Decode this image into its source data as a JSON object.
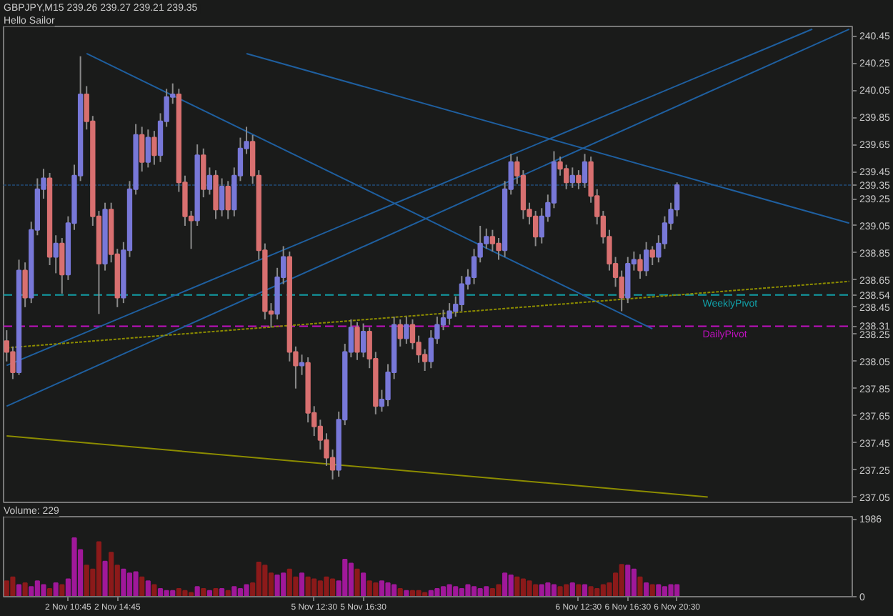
{
  "chart_data": [
    {
      "type": "candlestick",
      "title": "GBPJPY,M15  239.26 239.27 239.21 239.35",
      "subtitle": "Hello Sailor",
      "categories": [
        null,
        null,
        null,
        null,
        null,
        null,
        null,
        null,
        null,
        null,
        null,
        null,
        null,
        null,
        null,
        null,
        null,
        null,
        null,
        null,
        null,
        null,
        null,
        null,
        null,
        null,
        null,
        null,
        null,
        null,
        null,
        null,
        null,
        null,
        null,
        null,
        null,
        null,
        null,
        null,
        null,
        null,
        null,
        null,
        null,
        null,
        null,
        null,
        null,
        null,
        null,
        null,
        null,
        null,
        null,
        null,
        null,
        null,
        null,
        null,
        null,
        null,
        null,
        null,
        null,
        null,
        null,
        null,
        null,
        null,
        null,
        null,
        null,
        null,
        null,
        null,
        null,
        null,
        null,
        null,
        null,
        null,
        null,
        null,
        null,
        null,
        null,
        null,
        null,
        null,
        null,
        null,
        null,
        null,
        null,
        null,
        null,
        null,
        null,
        null,
        null,
        null,
        null,
        null,
        null,
        null,
        null,
        null,
        null,
        null,
        null,
        null,
        null,
        null,
        null,
        null,
        null,
        null,
        null,
        null,
        null,
        null,
        null,
        null,
        null,
        null,
        null,
        null,
        null,
        null,
        null,
        null,
        null,
        null,
        null,
        null,
        null,
        null
      ],
      "ohlc": [
        [
          238.2,
          238.28,
          238.05,
          238.12
        ],
        [
          238.12,
          238.16,
          237.92,
          237.97
        ],
        [
          237.97,
          238.8,
          237.95,
          238.72
        ],
        [
          238.72,
          238.78,
          238.45,
          238.52
        ],
        [
          238.52,
          239.08,
          238.48,
          239.02
        ],
        [
          239.02,
          239.4,
          238.98,
          239.32
        ],
        [
          239.32,
          239.47,
          239.25,
          239.4
        ],
        [
          239.4,
          239.44,
          238.76,
          238.82
        ],
        [
          238.82,
          238.98,
          238.7,
          238.92
        ],
        [
          238.92,
          238.96,
          238.55,
          238.69
        ],
        [
          238.69,
          239.12,
          238.65,
          239.07
        ],
        [
          239.07,
          239.5,
          239.02,
          239.42
        ],
        [
          239.42,
          240.3,
          239.38,
          240.02
        ],
        [
          240.02,
          240.08,
          239.76,
          239.82
        ],
        [
          239.82,
          239.86,
          239.05,
          239.12
        ],
        [
          239.12,
          239.16,
          238.4,
          238.77
        ],
        [
          238.77,
          239.22,
          238.72,
          239.17
        ],
        [
          239.17,
          239.22,
          238.78,
          238.84
        ],
        [
          238.84,
          238.88,
          238.45,
          238.52
        ],
        [
          238.52,
          238.93,
          238.48,
          238.87
        ],
        [
          238.87,
          239.38,
          238.82,
          239.32
        ],
        [
          239.32,
          239.8,
          239.28,
          239.72
        ],
        [
          239.72,
          239.78,
          239.45,
          239.52
        ],
        [
          239.52,
          239.76,
          239.48,
          239.7
        ],
        [
          239.7,
          239.75,
          239.5,
          239.57
        ],
        [
          239.57,
          239.88,
          239.52,
          239.82
        ],
        [
          239.82,
          240.06,
          239.78,
          240.0
        ],
        [
          240.0,
          240.1,
          239.95,
          240.02
        ],
        [
          240.02,
          240.06,
          239.3,
          239.37
        ],
        [
          239.37,
          239.42,
          239.05,
          239.12
        ],
        [
          239.12,
          239.16,
          238.88,
          239.09
        ],
        [
          239.09,
          239.65,
          239.05,
          239.57
        ],
        [
          239.57,
          239.62,
          239.26,
          239.32
        ],
        [
          239.32,
          239.48,
          239.28,
          239.42
        ],
        [
          239.42,
          239.46,
          239.1,
          239.17
        ],
        [
          239.17,
          239.4,
          239.12,
          239.34
        ],
        [
          239.34,
          239.38,
          239.1,
          239.17
        ],
        [
          239.17,
          239.48,
          239.12,
          239.42
        ],
        [
          239.42,
          239.7,
          239.38,
          239.62
        ],
        [
          239.62,
          239.78,
          239.58,
          239.67
        ],
        [
          239.67,
          239.72,
          239.36,
          239.42
        ],
        [
          239.42,
          239.46,
          238.8,
          238.87
        ],
        [
          238.87,
          238.92,
          238.36,
          238.42
        ],
        [
          238.42,
          238.48,
          238.3,
          238.4
        ],
        [
          238.4,
          238.74,
          238.36,
          238.67
        ],
        [
          238.67,
          238.9,
          238.62,
          238.82
        ],
        [
          238.82,
          238.86,
          238.05,
          238.12
        ],
        [
          238.12,
          238.16,
          237.85,
          238.02
        ],
        [
          238.02,
          238.1,
          237.95,
          238.04
        ],
        [
          238.04,
          238.08,
          237.6,
          237.67
        ],
        [
          237.67,
          237.72,
          237.5,
          237.57
        ],
        [
          237.57,
          237.62,
          237.4,
          237.47
        ],
        [
          237.47,
          237.52,
          237.28,
          237.34
        ],
        [
          237.34,
          237.4,
          237.18,
          237.25
        ],
        [
          237.25,
          237.68,
          237.2,
          237.62
        ],
        [
          237.62,
          238.18,
          237.58,
          238.12
        ],
        [
          238.12,
          238.36,
          238.08,
          238.3
        ],
        [
          238.3,
          238.34,
          238.06,
          238.12
        ],
        [
          238.12,
          238.33,
          238.08,
          238.27
        ],
        [
          238.27,
          238.3,
          238.0,
          238.07
        ],
        [
          238.07,
          238.12,
          237.66,
          237.72
        ],
        [
          237.72,
          237.84,
          237.68,
          237.77
        ],
        [
          237.77,
          238.03,
          237.72,
          237.97
        ],
        [
          237.97,
          238.38,
          237.92,
          238.32
        ],
        [
          238.32,
          238.36,
          238.16,
          238.22
        ],
        [
          238.22,
          238.38,
          238.18,
          238.32
        ],
        [
          238.32,
          238.36,
          238.14,
          238.19
        ],
        [
          238.19,
          238.24,
          238.04,
          238.1
        ],
        [
          238.1,
          238.14,
          237.98,
          238.05
        ],
        [
          238.05,
          238.28,
          238.0,
          238.22
        ],
        [
          238.22,
          238.38,
          238.18,
          238.32
        ],
        [
          238.32,
          238.43,
          238.28,
          238.37
        ],
        [
          238.37,
          238.48,
          238.32,
          238.42
        ],
        [
          238.42,
          238.53,
          238.38,
          238.47
        ],
        [
          238.47,
          238.68,
          238.42,
          238.62
        ],
        [
          238.62,
          238.73,
          238.58,
          238.67
        ],
        [
          238.67,
          238.88,
          238.62,
          238.82
        ],
        [
          238.82,
          239.05,
          238.78,
          238.92
        ],
        [
          238.92,
          239.03,
          238.88,
          238.97
        ],
        [
          238.97,
          239.02,
          238.86,
          238.92
        ],
        [
          238.92,
          238.96,
          238.8,
          238.87
        ],
        [
          238.87,
          239.38,
          238.82,
          239.32
        ],
        [
          239.32,
          239.58,
          239.28,
          239.52
        ],
        [
          239.52,
          239.56,
          239.36,
          239.42
        ],
        [
          239.42,
          239.46,
          239.1,
          239.17
        ],
        [
          239.17,
          239.22,
          239.06,
          239.12
        ],
        [
          239.12,
          239.16,
          238.9,
          238.97
        ],
        [
          238.97,
          239.18,
          238.92,
          239.12
        ],
        [
          239.12,
          239.28,
          239.08,
          239.22
        ],
        [
          239.22,
          239.6,
          239.18,
          239.52
        ],
        [
          239.52,
          239.56,
          239.42,
          239.47
        ],
        [
          239.47,
          239.5,
          239.32,
          239.37
        ],
        [
          239.37,
          239.48,
          239.33,
          239.42
        ],
        [
          239.42,
          239.46,
          239.32,
          239.37
        ],
        [
          239.37,
          239.58,
          239.33,
          239.52
        ],
        [
          239.52,
          239.56,
          239.22,
          239.27
        ],
        [
          239.27,
          239.32,
          239.06,
          239.12
        ],
        [
          239.12,
          239.16,
          238.92,
          238.97
        ],
        [
          238.97,
          239.02,
          238.72,
          238.77
        ],
        [
          238.77,
          238.82,
          238.6,
          238.67
        ],
        [
          238.67,
          238.72,
          238.42,
          238.52
        ],
        [
          238.52,
          238.82,
          238.48,
          238.77
        ],
        [
          238.77,
          238.86,
          238.72,
          238.8
        ],
        [
          238.8,
          238.84,
          238.66,
          238.72
        ],
        [
          238.72,
          238.93,
          238.68,
          238.87
        ],
        [
          238.87,
          238.9,
          238.76,
          238.82
        ],
        [
          238.82,
          238.98,
          238.78,
          238.92
        ],
        [
          238.92,
          239.12,
          238.88,
          239.07
        ],
        [
          239.07,
          239.22,
          239.02,
          239.17
        ],
        [
          239.17,
          239.37,
          239.12,
          239.35
        ],
        null,
        null,
        null,
        null,
        null,
        null,
        null,
        null,
        null,
        null,
        null,
        null,
        null,
        null,
        null,
        null,
        null,
        null,
        null,
        null,
        null,
        null,
        null,
        null,
        null,
        null,
        null,
        null
      ],
      "series": [
        {
          "type": "line",
          "color": "#1f5f9f",
          "values": [
            null,
            null,
            null,
            null,
            null,
            null,
            null,
            null,
            null,
            null,
            null,
            null,
            null,
            240.32,
            null,
            null,
            null,
            null,
            null,
            null,
            null,
            null,
            null,
            null,
            null,
            null,
            null,
            null,
            null,
            null,
            null,
            null,
            null,
            null,
            null,
            null,
            null,
            null,
            null,
            null,
            null,
            null,
            null,
            null,
            null,
            null,
            null,
            null,
            null,
            null,
            null,
            null,
            null,
            null,
            null,
            null,
            null,
            null,
            null,
            null,
            null,
            null,
            null,
            null,
            null,
            null,
            null,
            null,
            null,
            null,
            null,
            null,
            null,
            null,
            null,
            null,
            null,
            null,
            null,
            null,
            null,
            null,
            null,
            null,
            null,
            null,
            null,
            null,
            null,
            null,
            null,
            null,
            null,
            null,
            null,
            null,
            null,
            null,
            null,
            null,
            null,
            null,
            null,
            null,
            null,
            238.29,
            null,
            null,
            null,
            null,
            null,
            null,
            null,
            null,
            null,
            null,
            null,
            null,
            null,
            null,
            null,
            null,
            null,
            null,
            null,
            null,
            null,
            null,
            null,
            null,
            null,
            null,
            null,
            null,
            null,
            null,
            null,
            null
          ]
        },
        {
          "type": "line",
          "color": "#1f5f9f",
          "values": [
            null,
            null,
            null,
            null,
            null,
            null,
            null,
            null,
            null,
            null,
            null,
            null,
            null,
            null,
            null,
            null,
            null,
            null,
            null,
            null,
            null,
            null,
            null,
            null,
            null,
            null,
            null,
            null,
            null,
            null,
            null,
            null,
            null,
            null,
            null,
            null,
            null,
            null,
            null,
            240.32,
            null,
            null,
            null,
            null,
            null,
            null,
            null,
            null,
            null,
            null,
            null,
            null,
            null,
            null,
            null,
            null,
            null,
            null,
            null,
            null,
            null,
            null,
            null,
            null,
            null,
            null,
            null,
            null,
            null,
            null,
            null,
            null,
            null,
            null,
            null,
            null,
            null,
            null,
            null,
            null,
            null,
            null,
            null,
            null,
            null,
            null,
            null,
            null,
            null,
            null,
            null,
            null,
            null,
            null,
            null,
            null,
            null,
            null,
            null,
            null,
            null,
            null,
            null,
            null,
            null,
            null,
            null,
            null,
            null,
            null,
            null,
            null,
            null,
            null,
            null,
            null,
            null,
            null,
            null,
            null,
            null,
            null,
            null,
            null,
            null,
            null,
            null,
            null,
            null,
            null,
            null,
            null,
            null,
            null,
            null,
            null,
            null,
            239.07
          ]
        },
        {
          "type": "line",
          "color": "#1f5f9f",
          "values": [
            238.02,
            null,
            null,
            null,
            null,
            null,
            null,
            null,
            null,
            null,
            null,
            null,
            null,
            null,
            null,
            null,
            null,
            null,
            null,
            null,
            null,
            null,
            null,
            null,
            null,
            null,
            null,
            null,
            null,
            null,
            null,
            null,
            null,
            null,
            null,
            null,
            null,
            null,
            null,
            null,
            null,
            null,
            null,
            null,
            null,
            null,
            null,
            null,
            null,
            null,
            null,
            null,
            null,
            null,
            null,
            null,
            null,
            null,
            null,
            null,
            null,
            null,
            null,
            null,
            null,
            null,
            null,
            null,
            null,
            null,
            null,
            null,
            null,
            null,
            null,
            null,
            null,
            null,
            null,
            null,
            null,
            null,
            null,
            null,
            null,
            null,
            null,
            null,
            null,
            null,
            null,
            null,
            null,
            null,
            null,
            null,
            null,
            null,
            null,
            null,
            null,
            null,
            null,
            null,
            null,
            null,
            null,
            null,
            null,
            null,
            null,
            null,
            null,
            null,
            null,
            null,
            null,
            null,
            null,
            null,
            null,
            null,
            null,
            null,
            null,
            null,
            null,
            null,
            null,
            null,
            null,
            240.5,
            null,
            null,
            null,
            null,
            null,
            null
          ]
        },
        {
          "type": "line",
          "color": "#1f5f9f",
          "values": [
            237.72,
            null,
            null,
            null,
            null,
            null,
            null,
            null,
            null,
            null,
            null,
            null,
            null,
            null,
            null,
            null,
            null,
            null,
            null,
            null,
            null,
            null,
            null,
            null,
            null,
            null,
            null,
            null,
            null,
            null,
            null,
            null,
            null,
            null,
            null,
            null,
            null,
            null,
            null,
            null,
            null,
            null,
            null,
            null,
            null,
            null,
            null,
            null,
            null,
            null,
            null,
            null,
            null,
            null,
            null,
            null,
            null,
            null,
            null,
            null,
            null,
            null,
            null,
            null,
            null,
            null,
            null,
            null,
            null,
            null,
            null,
            null,
            null,
            null,
            null,
            null,
            null,
            null,
            null,
            null,
            null,
            null,
            null,
            null,
            null,
            null,
            null,
            null,
            null,
            null,
            null,
            null,
            null,
            null,
            null,
            null,
            null,
            null,
            null,
            null,
            null,
            null,
            null,
            null,
            null,
            null,
            null,
            null,
            null,
            null,
            null,
            null,
            null,
            null,
            null,
            null,
            null,
            null,
            null,
            null,
            null,
            null,
            null,
            null,
            null,
            null,
            null,
            null,
            null,
            null,
            null,
            null,
            null,
            null,
            null,
            null,
            null,
            240.5
          ]
        },
        {
          "type": "line",
          "color": "#8c8c00",
          "line_style": "dotted",
          "values": [
            238.15,
            null,
            null,
            null,
            null,
            null,
            null,
            null,
            null,
            null,
            null,
            null,
            null,
            null,
            null,
            null,
            null,
            null,
            null,
            null,
            null,
            null,
            null,
            null,
            null,
            null,
            null,
            null,
            null,
            null,
            null,
            null,
            null,
            null,
            null,
            null,
            null,
            null,
            null,
            null,
            null,
            null,
            null,
            null,
            null,
            null,
            null,
            null,
            null,
            null,
            null,
            null,
            null,
            null,
            null,
            null,
            null,
            null,
            null,
            null,
            null,
            null,
            null,
            null,
            null,
            null,
            null,
            null,
            null,
            null,
            null,
            null,
            null,
            null,
            null,
            null,
            null,
            null,
            null,
            null,
            null,
            null,
            null,
            null,
            null,
            null,
            null,
            null,
            null,
            null,
            null,
            null,
            null,
            null,
            null,
            null,
            null,
            null,
            null,
            null,
            null,
            null,
            null,
            null,
            null,
            null,
            null,
            null,
            null,
            null,
            null,
            null,
            null,
            null,
            null,
            null,
            null,
            null,
            null,
            null,
            null,
            null,
            null,
            null,
            null,
            null,
            null,
            null,
            null,
            null,
            null,
            null,
            null,
            null,
            null,
            null,
            null,
            238.64
          ]
        },
        {
          "type": "line",
          "color": "#8c8c00",
          "values": [
            237.5,
            null,
            null,
            null,
            null,
            null,
            null,
            null,
            null,
            null,
            null,
            null,
            null,
            null,
            null,
            null,
            null,
            null,
            null,
            null,
            null,
            null,
            null,
            null,
            null,
            null,
            null,
            null,
            null,
            null,
            null,
            null,
            null,
            null,
            null,
            null,
            null,
            null,
            null,
            null,
            null,
            null,
            null,
            null,
            null,
            null,
            null,
            null,
            null,
            null,
            null,
            null,
            null,
            null,
            null,
            null,
            null,
            null,
            null,
            null,
            null,
            null,
            null,
            null,
            null,
            null,
            null,
            null,
            null,
            null,
            null,
            null,
            null,
            null,
            null,
            null,
            null,
            null,
            null,
            null,
            null,
            null,
            null,
            null,
            null,
            null,
            null,
            null,
            null,
            null,
            null,
            null,
            null,
            null,
            null,
            null,
            null,
            null,
            null,
            null,
            null,
            null,
            null,
            null,
            null,
            null,
            null,
            null,
            null,
            null,
            null,
            null,
            null,
            null,
            237.05,
            null,
            null,
            null,
            null,
            null,
            null,
            null,
            null,
            null,
            null,
            null,
            null,
            null,
            null,
            null,
            null,
            null,
            null,
            null,
            null,
            null,
            null,
            null
          ]
        }
      ],
      "ylim": [
        237.0,
        240.52
      ],
      "yticks": [
        240.45,
        240.25,
        240.05,
        239.85,
        239.65,
        239.45,
        239.35,
        239.25,
        239.05,
        238.85,
        238.65,
        238.54,
        238.45,
        238.31,
        238.25,
        238.05,
        237.85,
        237.65,
        237.45,
        237.25,
        237.05
      ],
      "tick_labels": "y",
      "grid": false,
      "ref_lines": [
        {
          "axis": "y",
          "value": 239.35,
          "label": null,
          "color": "#1f3f5f",
          "line_style": "dotted"
        },
        {
          "axis": "y",
          "value": 238.54,
          "label": "WeeklyPivot",
          "color": "#12a0a8",
          "line_style": "dashed"
        },
        {
          "axis": "y",
          "value": 238.31,
          "label": "DailyPivot",
          "color": "#c010c0",
          "line_style": "dashed"
        }
      ]
    },
    {
      "type": "bar",
      "title": "Volume: 229",
      "categories": [
        null,
        null,
        null,
        null,
        null,
        null,
        null,
        null,
        null,
        null,
        "2 Nov 10:45",
        null,
        null,
        null,
        null,
        null,
        null,
        null,
        "2 Nov 14:45",
        null,
        null,
        null,
        null,
        null,
        null,
        null,
        null,
        null,
        null,
        null,
        null,
        null,
        null,
        null,
        null,
        null,
        null,
        null,
        null,
        null,
        null,
        null,
        null,
        null,
        null,
        null,
        null,
        null,
        null,
        null,
        "5 Nov 12:30",
        null,
        null,
        null,
        null,
        null,
        null,
        null,
        "5 Nov 16:30",
        null,
        null,
        null,
        null,
        null,
        null,
        null,
        null,
        null,
        null,
        null,
        null,
        null,
        null,
        null,
        null,
        null,
        null,
        null,
        null,
        null,
        null,
        null,
        null,
        null,
        null,
        null,
        null,
        null,
        null,
        null,
        null,
        null,
        null,
        "6 Nov 12:30",
        null,
        null,
        null,
        null,
        null,
        null,
        null,
        "6 Nov 16:30",
        null,
        null,
        null,
        null,
        null,
        null,
        null,
        "6 Nov 20:30",
        null,
        null,
        null,
        null,
        null,
        null,
        null,
        null,
        null,
        null,
        null,
        null,
        null,
        null,
        null,
        null,
        null,
        null,
        null,
        null,
        null,
        null,
        null,
        null,
        null,
        null,
        null,
        null
      ],
      "values": [
        400,
        500,
        300,
        350,
        250,
        400,
        300,
        200,
        350,
        300,
        450,
        1500,
        1200,
        800,
        700,
        1400,
        900,
        1130,
        800,
        700,
        600,
        630,
        500,
        400,
        300,
        200,
        150,
        150,
        200,
        150,
        100,
        250,
        200,
        150,
        200,
        200,
        150,
        250,
        200,
        300,
        350,
        880,
        800,
        600,
        550,
        600,
        700,
        500,
        600,
        500,
        450,
        400,
        500,
        450,
        400,
        950,
        850,
        700,
        600,
        400,
        350,
        400,
        350,
        300,
        200,
        150,
        150,
        150,
        100,
        150,
        200,
        250,
        300,
        250,
        200,
        300,
        250,
        200,
        250,
        200,
        300,
        600,
        550,
        500,
        450,
        400,
        300,
        300,
        350,
        300,
        250,
        300,
        350,
        300,
        300,
        250,
        200,
        300,
        350,
        600,
        820,
        800,
        700,
        500,
        350,
        300,
        300,
        250,
        300,
        300,
        null,
        null,
        null,
        null,
        null,
        null,
        null,
        null,
        null,
        null,
        null,
        null,
        null,
        null,
        null,
        null,
        null,
        null,
        null,
        null,
        null,
        null,
        null,
        null,
        null,
        null,
        null,
        null
      ],
      "colors": [
        "#8b1a1a",
        "#8b1a1a",
        "#a0189a",
        "#8b1a1a",
        "#a0189a",
        "#a0189a",
        "#a0189a",
        "#8b1a1a",
        "#a0189a",
        "#8b1a1a",
        "#a0189a",
        "#a0189a",
        "#a0189a",
        "#8b1a1a",
        "#8b1a1a",
        "#8b1a1a",
        "#a0189a",
        "#8b1a1a",
        "#8b1a1a",
        "#a0189a",
        "#a0189a",
        "#a0189a",
        "#8b1a1a",
        "#a0189a",
        "#8b1a1a",
        "#a0189a",
        "#a0189a",
        "#a0189a",
        "#8b1a1a",
        "#8b1a1a",
        "#8b1a1a",
        "#a0189a",
        "#8b1a1a",
        "#a0189a",
        "#8b1a1a",
        "#a0189a",
        "#8b1a1a",
        "#a0189a",
        "#a0189a",
        "#a0189a",
        "#8b1a1a",
        "#8b1a1a",
        "#8b1a1a",
        "#8b1a1a",
        "#a0189a",
        "#a0189a",
        "#8b1a1a",
        "#8b1a1a",
        "#a0189a",
        "#8b1a1a",
        "#8b1a1a",
        "#8b1a1a",
        "#8b1a1a",
        "#8b1a1a",
        "#a0189a",
        "#a0189a",
        "#a0189a",
        "#8b1a1a",
        "#a0189a",
        "#8b1a1a",
        "#8b1a1a",
        "#a0189a",
        "#a0189a",
        "#a0189a",
        "#8b1a1a",
        "#a0189a",
        "#8b1a1a",
        "#8b1a1a",
        "#8b1a1a",
        "#a0189a",
        "#a0189a",
        "#a0189a",
        "#a0189a",
        "#a0189a",
        "#a0189a",
        "#a0189a",
        "#a0189a",
        "#a0189a",
        "#a0189a",
        "#8b1a1a",
        "#8b1a1a",
        "#a0189a",
        "#a0189a",
        "#8b1a1a",
        "#8b1a1a",
        "#8b1a1a",
        "#8b1a1a",
        "#a0189a",
        "#a0189a",
        "#a0189a",
        "#8b1a1a",
        "#8b1a1a",
        "#a0189a",
        "#8b1a1a",
        "#a0189a",
        "#8b1a1a",
        "#8b1a1a",
        "#8b1a1a",
        "#8b1a1a",
        "#8b1a1a",
        "#8b1a1a",
        "#a0189a",
        "#a0189a",
        "#8b1a1a",
        "#a0189a",
        "#8b1a1a",
        "#a0189a",
        "#a0189a",
        "#a0189a",
        "#a0189a",
        null,
        null,
        null,
        null,
        null,
        null,
        null,
        null,
        null,
        null,
        null,
        null,
        null,
        null,
        null,
        null,
        null,
        null,
        null,
        null,
        null,
        null,
        null,
        null,
        null,
        null,
        null,
        null
      ],
      "ylim": [
        0,
        2050
      ],
      "yticks": [
        0,
        1986
      ],
      "grid": false
    }
  ]
}
